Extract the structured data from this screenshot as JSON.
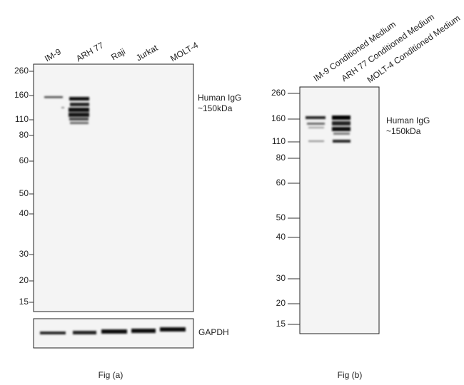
{
  "fig_a": {
    "lanes": [
      "IM-9",
      "ARH 77",
      "Raji",
      "Jurkat",
      "MOLT-4"
    ],
    "markers": [
      260,
      160,
      110,
      80,
      60,
      50,
      40,
      30,
      20,
      15
    ],
    "band_label": [
      "Human IgG",
      "~150kDa"
    ],
    "loading_control": "GAPDH",
    "caption": "Fig (a)"
  },
  "fig_b": {
    "lanes": [
      "IM-9 Conditioned Medium",
      "ARH 77 Conditioned Medium",
      "MOLT-4 Conditioned Medium"
    ],
    "markers": [
      260,
      160,
      110,
      80,
      60,
      50,
      40,
      30,
      20,
      15
    ],
    "band_label": [
      "Human IgG",
      "~150kDa"
    ],
    "caption": "Fig (b)"
  }
}
